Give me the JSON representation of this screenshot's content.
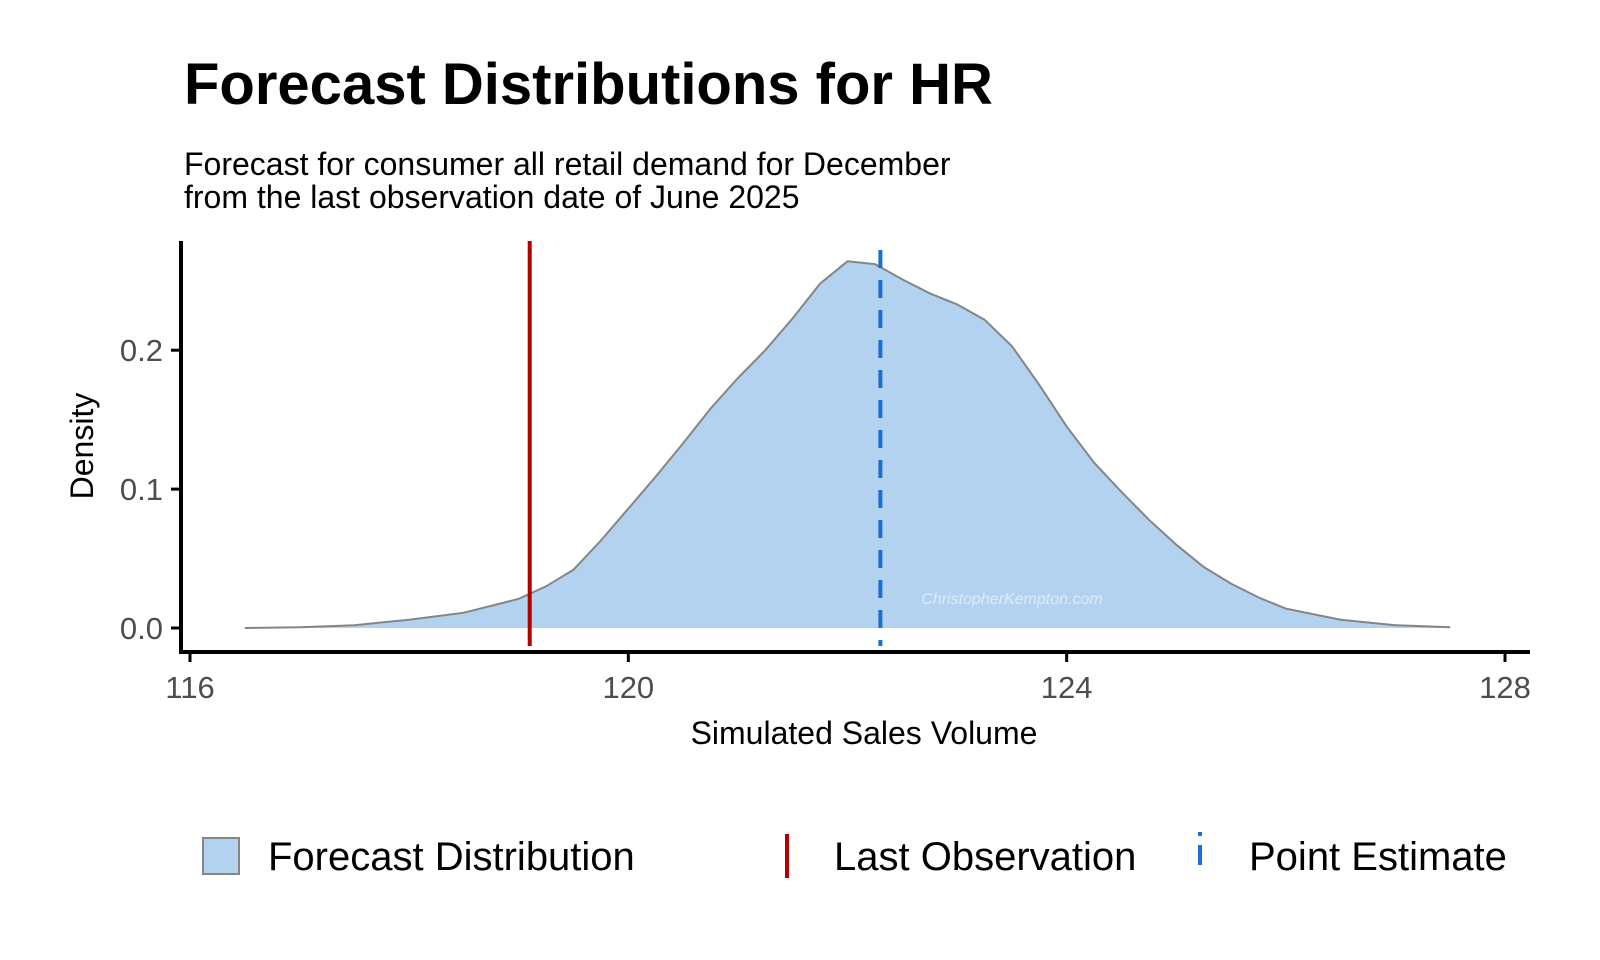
{
  "title": "Forecast Distributions for HR",
  "subtitle_lines": [
    "Forecast for consumer all retail demand for December",
    "from the last observation date of June 2025"
  ],
  "watermark": "ChristopherKempton.com",
  "colors": {
    "fill": "#b3d2f0",
    "outline": "#858585",
    "last_observation": "#b00000",
    "point_estimate": "#1a6fd0",
    "axis": "#000000"
  },
  "chart_data": {
    "type": "area",
    "xlabel": "Simulated Sales Volume",
    "ylabel": "Density",
    "xlim": [
      116,
      128
    ],
    "ylim": [
      0,
      0.27
    ],
    "x_ticks": [
      116,
      120,
      124,
      128
    ],
    "x_tick_labels": [
      "116",
      "120",
      "124",
      "128"
    ],
    "y_ticks": [
      0.0,
      0.1,
      0.2
    ],
    "y_tick_labels": [
      "0.0",
      "0.1",
      "0.2"
    ],
    "grid": false,
    "legend_position": "bottom",
    "density_curve": {
      "name": "Forecast Distribution",
      "x": [
        116.5,
        117.0,
        117.5,
        118.0,
        118.5,
        119.0,
        119.25,
        119.5,
        119.75,
        120.0,
        120.25,
        120.5,
        120.75,
        121.0,
        121.25,
        121.5,
        121.75,
        122.0,
        122.25,
        122.5,
        122.75,
        123.0,
        123.25,
        123.5,
        123.75,
        124.0,
        124.25,
        124.5,
        124.75,
        125.0,
        125.25,
        125.5,
        125.75,
        126.0,
        126.5,
        127.0,
        127.5
      ],
      "y": [
        0.0,
        0.0005,
        0.002,
        0.006,
        0.011,
        0.021,
        0.03,
        0.042,
        0.063,
        0.086,
        0.109,
        0.133,
        0.158,
        0.18,
        0.2,
        0.223,
        0.248,
        0.264,
        0.262,
        0.251,
        0.241,
        0.233,
        0.222,
        0.203,
        0.175,
        0.145,
        0.119,
        0.098,
        0.078,
        0.06,
        0.044,
        0.032,
        0.022,
        0.014,
        0.006,
        0.002,
        0.0005
      ]
    },
    "last_observation": {
      "name": "Last Observation",
      "x": 119.1
    },
    "point_estimate": {
      "name": "Point Estimate",
      "x": 122.3
    }
  },
  "legend": [
    {
      "key": "fill",
      "label": "Forecast Distribution"
    },
    {
      "key": "last_observation",
      "label": "Last Observation"
    },
    {
      "key": "point_estimate",
      "label": "Point Estimate"
    }
  ]
}
